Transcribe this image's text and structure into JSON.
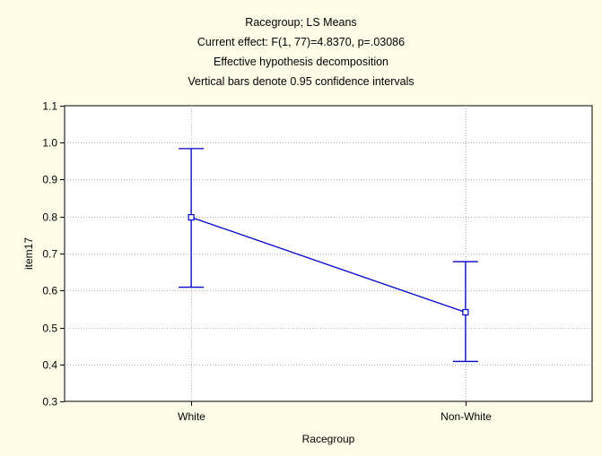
{
  "chart_data": {
    "type": "line",
    "title_lines": [
      "Racegroup; LS Means",
      "Current effect: F(1, 77)=4.8370, p=.03086",
      "Effective hypothesis decomposition",
      "Vertical bars denote 0.95 confidence intervals"
    ],
    "xlabel": "Racegroup",
    "ylabel": "item17",
    "categories": [
      "White",
      "Non-White"
    ],
    "series": [
      {
        "values": [
          0.798,
          0.541
        ],
        "ci_lower": [
          0.609,
          0.408
        ],
        "ci_upper": [
          0.984,
          0.678
        ]
      }
    ],
    "ylim": [
      0.3,
      1.1
    ],
    "yticks": [
      "0.3",
      "0.4",
      "0.5",
      "0.6",
      "0.7",
      "0.8",
      "0.9",
      "1.0",
      "1.1"
    ],
    "grid": true,
    "colors": {
      "line": "#0000cc",
      "background": "#fffde8",
      "plot_area": "#ffffff",
      "grid": "#b0b0b0"
    }
  }
}
